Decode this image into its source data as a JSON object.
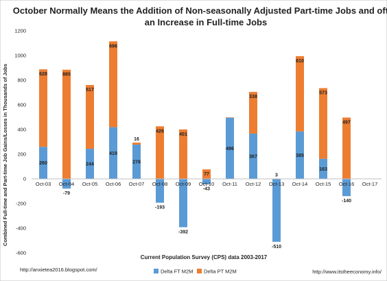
{
  "chart_data": {
    "type": "bar",
    "stacked": true,
    "title_line1": "October Normally Means the Addition of Non-seasonally Adjusted Part-time Jobs and often",
    "title_line2": "an Increase in Full-time Jobs",
    "xlabel": "Current Population Survey (CPS) data 2003-2017",
    "ylabel": "Combined Full-time and Part-time Job Gains/Losses in Thousands of Jobs",
    "ylim": [
      -600,
      1200
    ],
    "yticks": [
      "1200",
      "1000",
      "800",
      "600",
      "400",
      "200",
      "0",
      "-200",
      "-400",
      "-600"
    ],
    "grid": false,
    "legend_position": "bottom",
    "categories": [
      "Oct-03",
      "Oct-04",
      "Oct-05",
      "Oct-06",
      "Oct-07",
      "Oct-08",
      "Oct-09",
      "Oct-10",
      "Oct-11",
      "Oct-12",
      "Oct-13",
      "Oct-14",
      "Oct-15",
      "Oct-16",
      "Oct-17"
    ],
    "series": [
      {
        "name": "Delta FT M2M",
        "color": "#5B9BD5",
        "values": [
          260,
          -79,
          244,
          419,
          278,
          -193,
          -392,
          -43,
          496,
          367,
          -510,
          385,
          163,
          -140,
          null
        ],
        "labels": [
          "260",
          "-79",
          "244",
          "419",
          "278",
          "-193",
          "-392",
          "-43",
          "496",
          "367",
          "-510",
          "385",
          "163",
          "-140",
          ""
        ]
      },
      {
        "name": "Delta PT M2M",
        "color": "#ED7D31",
        "values": [
          628,
          885,
          517,
          696,
          16,
          426,
          401,
          77,
          3,
          338,
          3,
          610,
          573,
          497,
          null
        ],
        "labels": [
          "628",
          "885",
          "517",
          "696",
          "16",
          "426",
          "401",
          "77",
          "",
          "338",
          "3",
          "610",
          "573",
          "497",
          ""
        ]
      }
    ]
  },
  "footer": {
    "left_url": "http://anxietea2016.blogspot.com/",
    "right_url": "http://www.itstheeconomy.info/"
  }
}
